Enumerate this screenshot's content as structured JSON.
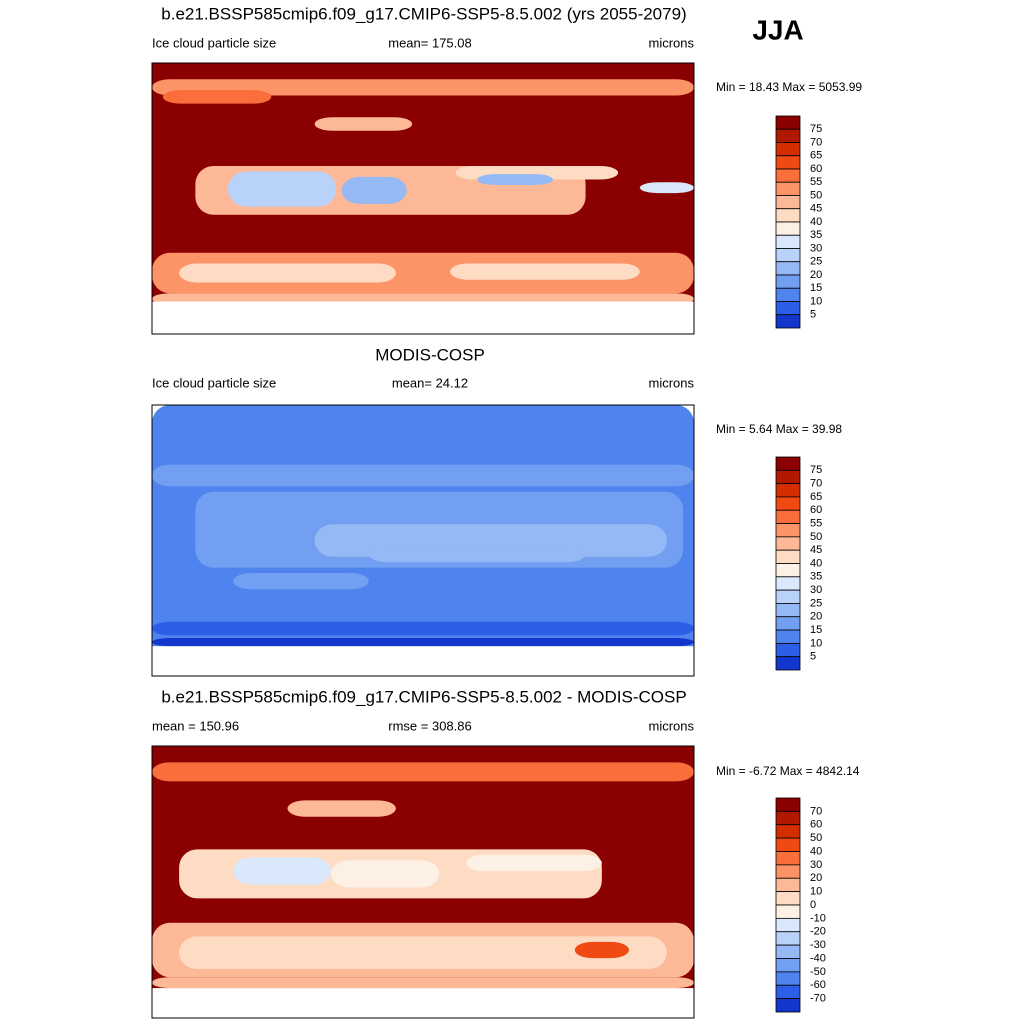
{
  "season": "JJA",
  "panels": [
    {
      "title": "b.e21.BSSP585cmip6.f09_g17.CMIP6-SSP5-8.5.002 (yrs 2055-2079)",
      "left": "Ice cloud particle size",
      "center": "mean= 175.08",
      "right": "microns",
      "minmax": "Min =  18.43 Max = 5053.99",
      "colorbar": {
        "labels": [
          "75",
          "70",
          "65",
          "60",
          "55",
          "50",
          "45",
          "40",
          "35",
          "30",
          "25",
          "20",
          "15",
          "10",
          "5"
        ],
        "colors": [
          "#8b0000",
          "#b01800",
          "#d42e00",
          "#f04a12",
          "#fa6e3c",
          "#fc9468",
          "#fdb898",
          "#fedcc4",
          "#fdf0e4",
          "#dae8fc",
          "#b8d2f9",
          "#95b9f5",
          "#729ff2",
          "#4f84ef",
          "#2c5ee8",
          "#1336cc",
          "#00158f"
        ]
      }
    },
    {
      "title": "MODIS-COSP",
      "left": "Ice cloud particle size",
      "center": "mean=  24.12",
      "right": "microns",
      "minmax": "Min =   5.64 Max =  39.98",
      "colorbar": {
        "labels": [
          "75",
          "70",
          "65",
          "60",
          "55",
          "50",
          "45",
          "40",
          "35",
          "30",
          "25",
          "20",
          "15",
          "10",
          "5"
        ],
        "colors": [
          "#8b0000",
          "#b01800",
          "#d42e00",
          "#f04a12",
          "#fa6e3c",
          "#fc9468",
          "#fdb898",
          "#fedcc4",
          "#fdf0e4",
          "#dae8fc",
          "#b8d2f9",
          "#95b9f5",
          "#729ff2",
          "#4f84ef",
          "#2c5ee8",
          "#1336cc",
          "#00158f"
        ]
      }
    },
    {
      "title": "b.e21.BSSP585cmip6.f09_g17.CMIP6-SSP5-8.5.002 - MODIS-COSP",
      "left": "mean = 150.96",
      "center": "rmse = 308.86",
      "right": "microns",
      "minmax": "Min =  -6.72 Max = 4842.14",
      "colorbar": {
        "labels": [
          "70",
          "60",
          "50",
          "40",
          "30",
          "20",
          "10",
          "0",
          "-10",
          "-20",
          "-30",
          "-40",
          "-50",
          "-60",
          "-70"
        ],
        "colors": [
          "#8b0000",
          "#b01800",
          "#d42e00",
          "#f04a12",
          "#fa6e3c",
          "#fc9468",
          "#fdb898",
          "#fedcc4",
          "#fdf0e4",
          "#dae8fc",
          "#b8d2f9",
          "#95b9f5",
          "#729ff2",
          "#4f84ef",
          "#2c5ee8",
          "#1336cc",
          "#00158f"
        ]
      }
    }
  ]
}
